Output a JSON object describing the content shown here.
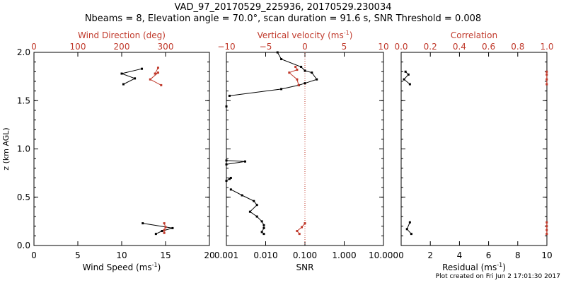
{
  "header": {
    "title": "VAD_97_20170529_225936, 20170529.230034",
    "subtitle": "Nbeams = 8, Elevation angle = 70.0°, scan duration = 91.6 s, SNR Threshold = 0.008"
  },
  "footer": {
    "timestamp": "Plot created on Fri Jun  2 17:01:30 2017"
  },
  "colors": {
    "black": "#000000",
    "red": "#c0392b"
  },
  "chart_data": [
    {
      "type": "line",
      "ylabel": "z (km AGL)",
      "ylim": [
        0,
        2
      ],
      "yticks": [
        "0.0",
        "0.5",
        "1.0",
        "1.5",
        "2.0"
      ],
      "bottom_axis": {
        "label": "Wind Speed (ms",
        "label_sup": "-1",
        "label_end": ")",
        "range": [
          0,
          20
        ],
        "ticks": [
          "0",
          "5",
          "10",
          "15",
          "20"
        ]
      },
      "top_axis": {
        "label": "Wind Direction (deg)",
        "range": [
          0,
          400
        ],
        "ticks": [
          "0",
          "100",
          "200",
          "300"
        ],
        "color": "#c0392b"
      },
      "series": [
        {
          "axis": "bottom",
          "color": "#000000",
          "segments": [
            [
              [
                12.3,
                1.83
              ],
              [
                10.0,
                1.78
              ],
              [
                11.5,
                1.73
              ],
              [
                10.2,
                1.67
              ]
            ],
            [
              [
                12.4,
                0.23
              ],
              [
                15.8,
                0.18
              ],
              [
                14.6,
                0.15
              ],
              [
                13.9,
                0.12
              ]
            ]
          ]
        },
        {
          "axis": "top",
          "color": "#c0392b",
          "segments": [
            [
              [
                283,
                1.84
              ],
              [
                276,
                1.78
              ],
              [
                283,
                1.79
              ],
              [
                265,
                1.72
              ],
              [
                290,
                1.66
              ]
            ],
            [
              [
                297,
                0.23
              ],
              [
                300,
                0.19
              ],
              [
                297,
                0.16
              ],
              [
                297,
                0.13
              ]
            ]
          ]
        }
      ]
    },
    {
      "type": "line",
      "bottom_axis": {
        "label": "SNR",
        "scale": "log",
        "range": [
          0.001,
          10
        ],
        "ticks": [
          "0.001",
          "0.010",
          "0.100",
          "1.000",
          "10.000"
        ]
      },
      "top_axis": {
        "label": "Vertical velocity (ms",
        "label_sup": "-1",
        "label_end": ")",
        "range": [
          -10,
          10
        ],
        "ticks": [
          "−10",
          "−5",
          "0",
          "5",
          "10"
        ],
        "color": "#c0392b"
      },
      "reference_line": {
        "axis": "top",
        "value": 0,
        "style": "dotted",
        "color": "#c0392b"
      },
      "series": [
        {
          "axis": "bottom",
          "color": "#000000",
          "segments": [
            [
              [
                0.02,
                2.0
              ],
              [
                0.025,
                1.93
              ],
              [
                0.08,
                1.85
              ],
              [
                0.1,
                1.81
              ],
              [
                0.15,
                1.79
              ],
              [
                0.2,
                1.72
              ],
              [
                0.1,
                1.68
              ],
              [
                0.07,
                1.66
              ],
              [
                0.025,
                1.62
              ],
              [
                0.0012,
                1.55
              ]
            ],
            [
              [
                0.001,
                1.44
              ]
            ],
            [
              [
                0.001,
                0.88
              ],
              [
                0.003,
                0.87
              ],
              [
                0.001,
                0.84
              ]
            ],
            [
              [
                0.0013,
                0.7
              ],
              [
                0.0012,
                0.69
              ],
              [
                0.001,
                0.67
              ]
            ],
            [
              [
                0.0013,
                0.58
              ],
              [
                0.0025,
                0.52
              ],
              [
                0.005,
                0.46
              ],
              [
                0.006,
                0.42
              ],
              [
                0.004,
                0.35
              ],
              [
                0.006,
                0.3
              ],
              [
                0.008,
                0.25
              ],
              [
                0.009,
                0.21
              ],
              [
                0.009,
                0.18
              ],
              [
                0.008,
                0.14
              ],
              [
                0.009,
                0.12
              ]
            ]
          ]
        },
        {
          "axis": "top",
          "color": "#c0392b",
          "segments": [
            [
              [
                -1.2,
                1.85
              ],
              [
                -1.0,
                1.82
              ],
              [
                -2.0,
                1.79
              ],
              [
                -1.0,
                1.72
              ],
              [
                -0.8,
                1.66
              ]
            ],
            [
              [
                0.0,
                0.23
              ],
              [
                -0.4,
                0.19
              ],
              [
                -1.0,
                0.15
              ],
              [
                -0.7,
                0.12
              ]
            ]
          ]
        }
      ]
    },
    {
      "type": "line",
      "bottom_axis": {
        "label": "Residual (ms",
        "label_sup": "-1",
        "label_end": ")",
        "range": [
          0,
          10
        ],
        "ticks": [
          "0",
          "2",
          "4",
          "6",
          "8",
          "10"
        ]
      },
      "top_axis": {
        "label": "Correlation",
        "range": [
          0,
          1
        ],
        "ticks": [
          "0.0",
          "0.2",
          "0.4",
          "0.6",
          "0.8",
          "1.0"
        ],
        "color": "#c0392b"
      },
      "series": [
        {
          "axis": "bottom",
          "color": "#000000",
          "segments": [
            [
              [
                0.3,
                1.8
              ],
              [
                0.5,
                1.77
              ],
              [
                0.2,
                1.72
              ],
              [
                0.6,
                1.67
              ]
            ],
            [
              [
                0.6,
                0.24
              ],
              [
                0.4,
                0.17
              ],
              [
                0.7,
                0.12
              ]
            ]
          ]
        },
        {
          "axis": "top",
          "color": "#c0392b",
          "segments": [
            [
              [
                0.999,
                1.8
              ],
              [
                0.999,
                1.77
              ],
              [
                0.999,
                1.72
              ],
              [
                0.999,
                1.67
              ]
            ],
            [
              [
                0.999,
                0.24
              ],
              [
                0.999,
                0.2
              ],
              [
                0.999,
                0.16
              ],
              [
                0.999,
                0.12
              ]
            ]
          ]
        }
      ]
    }
  ]
}
